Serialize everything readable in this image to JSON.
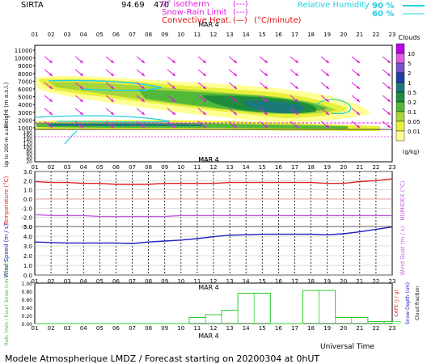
{
  "header": {
    "site": "SIRTA",
    "coords": "94.69",
    "coords_suffix": "470",
    "legend": [
      {
        "label": "0° isotherm",
        "sample": "(---)",
        "color": "#e01ee0"
      },
      {
        "label": "Snow-Rain Limit",
        "sample": "(---)",
        "color": "#e01ee0"
      },
      {
        "label": "Convective Heat.",
        "sample": "(—)",
        "extra": "(°C/minute)",
        "color": "#e01010"
      }
    ],
    "humidity_label": "Relative Humidity",
    "humidity_levels": [
      "90 %",
      "60 %"
    ],
    "humidity_color": "#22d0e0"
  },
  "hours_top": [
    "01",
    "02",
    "03",
    "04",
    "05",
    "06",
    "07",
    "08",
    "09",
    "10",
    "11",
    "12",
    "13",
    "14",
    "15",
    "16",
    "17",
    "18",
    "19",
    "20",
    "21",
    "22",
    "23"
  ],
  "date_label": "MAR  4",
  "panel1": {
    "ylabel": "Height  (m a.s.l.)",
    "ylabel2": "Up to 200 m a.s.l.",
    "yticks_upper": [
      "11000",
      "10000",
      "9000",
      "8000",
      "7000",
      "6000",
      "5000",
      "4000",
      "3000",
      "2000",
      "1000"
    ],
    "yticks_lower": [
      "180",
      "160",
      "140",
      "120",
      "100",
      "80",
      "60",
      "40",
      "20"
    ],
    "clouds_title": "Clouds",
    "clouds_unit": "(g/kg)",
    "colorbar": [
      {
        "label": "",
        "color": "#b800e6"
      },
      {
        "label": "10",
        "color": "#e05ce0"
      },
      {
        "label": "5",
        "color": "#7a52c8"
      },
      {
        "label": "2",
        "color": "#1e3ea8"
      },
      {
        "label": "1",
        "color": "#1a7a7a"
      },
      {
        "label": "0.5",
        "color": "#1e8c3c"
      },
      {
        "label": "0.2",
        "color": "#52b83a"
      },
      {
        "label": "0.1",
        "color": "#a8d63a"
      },
      {
        "label": "0.05",
        "color": "#e8f03c"
      },
      {
        "label": "0.01",
        "color": "#ffff96"
      }
    ]
  },
  "panel2": {
    "ylabel": "Temperature (°C)",
    "ylabel_right": "HUMIDEX (°C)",
    "yticks": [
      "3.0",
      "2.0",
      "1.0",
      "0.0",
      "-1.0",
      "-2.0",
      "-3.0"
    ],
    "temperature_color": "#dd2020",
    "humidex_color": "#c060e0",
    "wind_color": "#2020c0",
    "precip_color": "#30cc30"
  },
  "panel3": {
    "ylabel": "Wind Speed (m / s)",
    "ylabel_right": "Wind Gust (m / s)",
    "yticks": [
      "5.0",
      "4.0",
      "3.0",
      "2.0",
      "1.0",
      "0.0"
    ]
  },
  "panel4": {
    "ylabel": "Rain (mm / hour) Snow (cm / hour)",
    "ylabel_right_cape": "CAPE (J / g)",
    "ylabel_right_snow": "Snow Depth (cm)",
    "ylabel_right_cloud": "Cloud fraction",
    "yticks": [
      "1.00",
      "0.80",
      "0.60",
      "0.40",
      "0.20",
      "0.00"
    ]
  },
  "xlabel": "Universal Time",
  "footer": "Modele Atmospherique LMDZ / Forecast starting on 20200304 at 0hUT",
  "chart_data": [
    {
      "type": "line",
      "title": "Temperature (°C)",
      "x": [
        1,
        2,
        3,
        4,
        5,
        6,
        7,
        8,
        9,
        10,
        11,
        12,
        13,
        14,
        15,
        16,
        17,
        18,
        19,
        20,
        21,
        22,
        23
      ],
      "ylim": [
        -3,
        3
      ],
      "series": [
        {
          "name": "Temperature",
          "values": [
            1.9,
            1.8,
            1.8,
            1.7,
            1.7,
            1.6,
            1.6,
            1.6,
            1.7,
            1.7,
            1.7,
            1.7,
            1.8,
            1.8,
            1.8,
            1.8,
            1.8,
            1.8,
            1.7,
            1.7,
            1.9,
            2.0,
            2.2
          ]
        },
        {
          "name": "HUMIDEX",
          "values": [
            -1.7,
            -1.8,
            -1.8,
            -1.8,
            -1.9,
            -1.9,
            -1.9,
            -1.9,
            -1.9,
            -1.8,
            -1.8,
            -1.8,
            -1.8,
            -1.8,
            -1.8,
            -1.8,
            -1.8,
            -1.8,
            -1.8,
            -1.8,
            -1.8,
            -1.8,
            -1.8
          ]
        }
      ]
    },
    {
      "type": "line",
      "title": "Wind Speed (m / s)",
      "x": [
        1,
        2,
        3,
        4,
        5,
        6,
        7,
        8,
        9,
        10,
        11,
        12,
        13,
        14,
        15,
        16,
        17,
        18,
        19,
        20,
        21,
        22,
        23
      ],
      "ylim": [
        0,
        5
      ],
      "series": [
        {
          "name": "Wind Speed",
          "values": [
            3.4,
            3.35,
            3.3,
            3.3,
            3.3,
            3.3,
            3.25,
            3.4,
            3.5,
            3.6,
            3.75,
            3.95,
            4.1,
            4.15,
            4.2,
            4.2,
            4.2,
            4.2,
            4.15,
            4.25,
            4.45,
            4.7,
            4.95
          ]
        }
      ]
    },
    {
      "type": "bar",
      "title": "Rain (mm / hour)",
      "x": [
        1,
        2,
        3,
        4,
        5,
        6,
        7,
        8,
        9,
        10,
        11,
        12,
        13,
        14,
        15,
        16,
        17,
        18,
        19,
        20,
        21,
        22,
        23
      ],
      "ylim": [
        0,
        1
      ],
      "values": [
        0,
        0,
        0,
        0,
        0,
        0,
        0,
        0,
        0,
        0,
        0.15,
        0.22,
        0.33,
        0.75,
        0.75,
        0,
        0,
        0.82,
        0.82,
        0.15,
        0.15,
        0.05,
        0.05
      ]
    }
  ]
}
